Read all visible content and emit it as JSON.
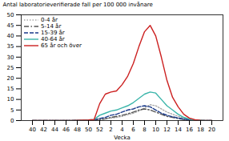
{
  "chart_data": {
    "type": "line",
    "xlabel": "Vecka",
    "ylabel": "Antal laboratorieverifierade fall per 100 000 invånare",
    "categories": [
      "40",
      null,
      "42",
      null,
      "44",
      null,
      "46",
      null,
      "48",
      null,
      "50",
      null,
      "52",
      null,
      "2",
      null,
      "4",
      null,
      "6",
      null,
      "8",
      null,
      "10",
      null,
      "12",
      null,
      "14",
      null,
      "16",
      null,
      "18",
      null,
      "20"
    ],
    "series": [
      {
        "name": "0-4 år",
        "color": "#aaaaaa",
        "line_style": "dotted",
        "values": [
          0,
          0,
          0,
          0,
          0,
          0,
          0,
          0,
          0.0,
          0.1,
          0.1,
          0.2,
          0.5,
          0.8,
          1.2,
          1.5,
          2.0,
          2.8,
          3.5,
          4.5,
          6.0,
          7.5,
          7.0,
          5.5,
          4.0,
          3.0,
          2.0,
          1.2,
          0.6,
          0.2,
          0.1,
          0.0,
          0
        ]
      },
      {
        "name": "5-14 år",
        "color": "#555555",
        "line_style": "dashdot",
        "values": [
          0,
          0,
          0,
          0,
          0,
          0,
          0,
          0,
          0.0,
          0.1,
          0.1,
          0.2,
          0.5,
          0.8,
          1.5,
          2.0,
          2.5,
          3.2,
          4.0,
          5.0,
          5.5,
          5.0,
          4.0,
          3.0,
          2.0,
          1.5,
          1.0,
          0.5,
          0.2,
          0.1,
          0.0,
          0.0,
          0
        ]
      },
      {
        "name": "15-39 år",
        "color": "#1a3a8a",
        "line_style": "dashed",
        "values": [
          0,
          0,
          0,
          0,
          0,
          0,
          0,
          0,
          0.1,
          0.1,
          0.2,
          0.3,
          1.0,
          1.5,
          2.5,
          3.0,
          4.0,
          5.0,
          5.5,
          6.5,
          7.0,
          6.5,
          5.0,
          3.5,
          2.5,
          1.8,
          1.2,
          0.7,
          0.3,
          0.1,
          0.05,
          0.0,
          0
        ]
      },
      {
        "name": "40-64 år",
        "color": "#3ab5aa",
        "line_style": "solid",
        "values": [
          0,
          0,
          0,
          0,
          0,
          0,
          0,
          0,
          0.1,
          0.2,
          0.3,
          0.5,
          2.5,
          3.5,
          4.5,
          5.0,
          6.0,
          7.0,
          8.5,
          10.5,
          12.5,
          13.5,
          13.0,
          10.0,
          7.0,
          5.0,
          3.0,
          1.5,
          0.7,
          0.2,
          0.1,
          0.0,
          0
        ]
      },
      {
        "name": "65 år och över",
        "color": "#cc2020",
        "line_style": "solid",
        "values": [
          0,
          0,
          0,
          0,
          0,
          0,
          0,
          0,
          0.1,
          0.2,
          0.3,
          0.5,
          8.0,
          12.5,
          13.5,
          14.0,
          17.0,
          21.0,
          27.0,
          35.0,
          42.0,
          45.0,
          40.0,
          30.0,
          19.0,
          11.0,
          6.5,
          3.0,
          1.2,
          0.4,
          0.1,
          0.0,
          0
        ]
      }
    ],
    "ylim": [
      0,
      50
    ],
    "yticks": [
      0,
      5,
      10,
      15,
      20,
      25,
      30,
      35,
      40,
      45,
      50
    ],
    "legend": "upper left",
    "grid": false
  }
}
